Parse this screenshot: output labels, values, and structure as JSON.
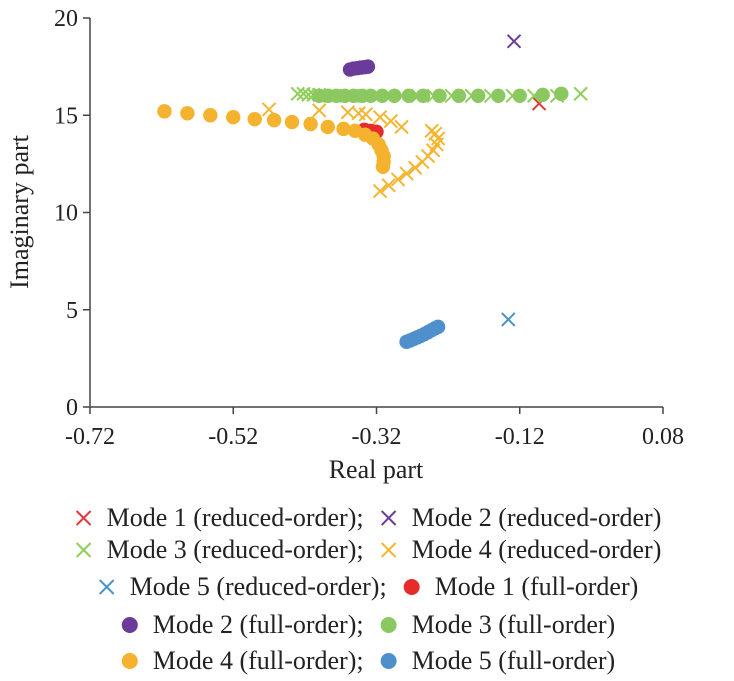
{
  "chart_data": {
    "type": "scatter",
    "title": "",
    "xlabel": "Real part",
    "ylabel": "Imaginary part",
    "xlim": [
      -0.72,
      0.08
    ],
    "ylim": [
      0,
      20
    ],
    "xticks": [
      -0.72,
      -0.52,
      -0.32,
      -0.12,
      0.08
    ],
    "xtick_labels": [
      "-0.72",
      "-0.52",
      "-0.32",
      "-0.12",
      "0.08"
    ],
    "yticks": [
      0,
      5,
      10,
      15,
      20
    ],
    "ytick_labels": [
      "0",
      "5",
      "10",
      "15",
      "20"
    ],
    "grid": false,
    "legend_position": "bottom",
    "series": [
      {
        "name": "Mode 1 (reduced-order);",
        "marker": "x",
        "color": "#e03a3a",
        "points": [
          [
            -0.093,
            15.6
          ]
        ]
      },
      {
        "name": "Mode 2 (reduced-order)",
        "marker": "x",
        "color": "#6a3d99",
        "points": [
          [
            -0.128,
            18.8
          ]
        ]
      },
      {
        "name": "Mode 3 (reduced-order);",
        "marker": "x",
        "color": "#8dcf5a",
        "points": [
          [
            -0.43,
            16.1
          ],
          [
            -0.422,
            16.1
          ],
          [
            -0.415,
            16.05
          ],
          [
            -0.408,
            16.05
          ],
          [
            -0.4,
            16.05
          ],
          [
            -0.392,
            16.0
          ],
          [
            -0.385,
            16.0
          ],
          [
            -0.378,
            16.0
          ],
          [
            -0.37,
            16.0
          ],
          [
            -0.362,
            16.0
          ],
          [
            -0.354,
            16.0
          ],
          [
            -0.345,
            16.0
          ],
          [
            -0.335,
            16.0
          ],
          [
            -0.32,
            16.0
          ],
          [
            -0.305,
            16.0
          ],
          [
            -0.285,
            16.0
          ],
          [
            -0.262,
            16.0
          ],
          [
            -0.24,
            16.0
          ],
          [
            -0.215,
            16.0
          ],
          [
            -0.187,
            16.0
          ],
          [
            -0.16,
            16.0
          ],
          [
            -0.13,
            16.0
          ],
          [
            -0.1,
            16.0
          ],
          [
            -0.068,
            16.0
          ],
          [
            -0.035,
            16.1
          ]
        ]
      },
      {
        "name": "Mode 4 (reduced-order)",
        "marker": "x",
        "color": "#f5b531",
        "points": [
          [
            -0.47,
            15.3
          ],
          [
            -0.4,
            15.25
          ],
          [
            -0.36,
            15.15
          ],
          [
            -0.345,
            15.1
          ],
          [
            -0.335,
            15.05
          ],
          [
            -0.315,
            14.9
          ],
          [
            -0.3,
            14.7
          ],
          [
            -0.285,
            14.4
          ],
          [
            -0.315,
            11.1
          ],
          [
            -0.303,
            11.4
          ],
          [
            -0.29,
            11.7
          ],
          [
            -0.278,
            12.0
          ],
          [
            -0.266,
            12.3
          ],
          [
            -0.256,
            12.6
          ],
          [
            -0.248,
            12.9
          ],
          [
            -0.241,
            13.2
          ],
          [
            -0.236,
            13.5
          ],
          [
            -0.234,
            13.8
          ],
          [
            -0.238,
            14.05
          ],
          [
            -0.243,
            14.2
          ]
        ]
      },
      {
        "name": "Mode 5 (reduced-order);",
        "marker": "x",
        "color": "#4a94c9",
        "points": [
          [
            -0.136,
            4.5
          ]
        ]
      },
      {
        "name": "Mode 1 (full-order)",
        "marker": "o",
        "color": "#e62b2b",
        "points": [
          [
            -0.337,
            14.25
          ],
          [
            -0.328,
            14.2
          ],
          [
            -0.32,
            14.15
          ]
        ]
      },
      {
        "name": "Mode 2 (full-order);",
        "marker": "o",
        "color": "#6a3b98",
        "points": [
          [
            -0.357,
            17.35
          ],
          [
            -0.352,
            17.4
          ],
          [
            -0.347,
            17.42
          ],
          [
            -0.342,
            17.45
          ],
          [
            -0.337,
            17.47
          ],
          [
            -0.332,
            17.5
          ]
        ]
      },
      {
        "name": "Mode 3 (full-order)",
        "marker": "o",
        "color": "#8cc860",
        "points": [
          [
            -0.4,
            16.0
          ],
          [
            -0.388,
            16.0
          ],
          [
            -0.376,
            16.0
          ],
          [
            -0.364,
            16.0
          ],
          [
            -0.352,
            16.0
          ],
          [
            -0.34,
            16.0
          ],
          [
            -0.328,
            16.0
          ],
          [
            -0.312,
            16.0
          ],
          [
            -0.295,
            16.0
          ],
          [
            -0.275,
            16.0
          ],
          [
            -0.255,
            16.0
          ],
          [
            -0.232,
            16.0
          ],
          [
            -0.205,
            16.0
          ],
          [
            -0.178,
            16.0
          ],
          [
            -0.15,
            16.0
          ],
          [
            -0.12,
            16.0
          ],
          [
            -0.088,
            16.05
          ],
          [
            -0.062,
            16.1
          ]
        ]
      },
      {
        "name": "Mode 4 (full-order);",
        "marker": "o",
        "color": "#f5b22f",
        "points": [
          [
            -0.616,
            15.2
          ],
          [
            -0.584,
            15.1
          ],
          [
            -0.552,
            15.0
          ],
          [
            -0.52,
            14.9
          ],
          [
            -0.49,
            14.8
          ],
          [
            -0.463,
            14.75
          ],
          [
            -0.438,
            14.65
          ],
          [
            -0.412,
            14.55
          ],
          [
            -0.388,
            14.4
          ],
          [
            -0.366,
            14.3
          ],
          [
            -0.35,
            14.2
          ],
          [
            -0.336,
            14.0
          ],
          [
            -0.325,
            13.8
          ],
          [
            -0.317,
            13.5
          ],
          [
            -0.313,
            13.2
          ],
          [
            -0.31,
            12.9
          ],
          [
            -0.31,
            12.6
          ],
          [
            -0.311,
            12.35
          ]
        ]
      },
      {
        "name": "Mode 5 (full-order)",
        "marker": "o",
        "color": "#4f8fcc",
        "points": [
          [
            -0.278,
            3.35
          ],
          [
            -0.273,
            3.42
          ],
          [
            -0.268,
            3.5
          ],
          [
            -0.263,
            3.58
          ],
          [
            -0.258,
            3.66
          ],
          [
            -0.253,
            3.75
          ],
          [
            -0.248,
            3.85
          ],
          [
            -0.243,
            3.95
          ],
          [
            -0.238,
            4.05
          ],
          [
            -0.234,
            4.12
          ]
        ]
      }
    ]
  }
}
